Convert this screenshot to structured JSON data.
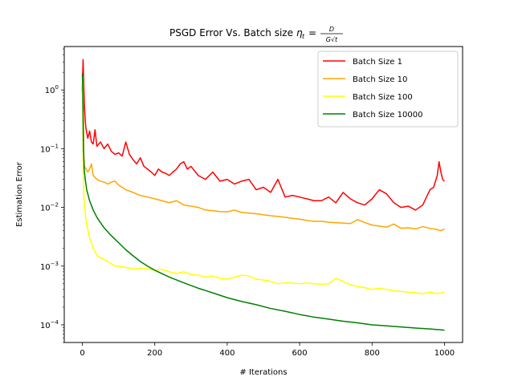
{
  "chart_data": {
    "type": "line",
    "title": "PSGD Error Vs. Batch size",
    "title_math": "η_t = D / (G√t)",
    "xlabel": "# Iterations",
    "ylabel": "Estimation Error",
    "xlim": [
      -50,
      1050
    ],
    "ylim": [
      5e-05,
      5.5
    ],
    "yscale": "log",
    "x_ticks": [
      0,
      200,
      400,
      600,
      800,
      1000
    ],
    "y_ticks": [
      0.0001,
      0.001,
      0.01,
      0.1,
      1
    ],
    "y_tick_labels": [
      "10^-4",
      "10^-3",
      "10^-2",
      "10^-1",
      "10^0"
    ],
    "grid": false,
    "legend_position": "top-right",
    "series": [
      {
        "name": "Batch Size 1",
        "color": "#ff0000",
        "points": [
          [
            0,
            1.0
          ],
          [
            1,
            2.0
          ],
          [
            2,
            3.3
          ],
          [
            4,
            1.2
          ],
          [
            6,
            0.5
          ],
          [
            8,
            0.3
          ],
          [
            10,
            0.22
          ],
          [
            15,
            0.15
          ],
          [
            20,
            0.2
          ],
          [
            25,
            0.13
          ],
          [
            30,
            0.12
          ],
          [
            35,
            0.21
          ],
          [
            40,
            0.11
          ],
          [
            50,
            0.13
          ],
          [
            60,
            0.1
          ],
          [
            70,
            0.12
          ],
          [
            80,
            0.09
          ],
          [
            90,
            0.08
          ],
          [
            100,
            0.085
          ],
          [
            110,
            0.075
          ],
          [
            120,
            0.13
          ],
          [
            130,
            0.08
          ],
          [
            140,
            0.065
          ],
          [
            150,
            0.055
          ],
          [
            160,
            0.07
          ],
          [
            170,
            0.05
          ],
          [
            180,
            0.045
          ],
          [
            190,
            0.04
          ],
          [
            200,
            0.035
          ],
          [
            210,
            0.045
          ],
          [
            220,
            0.04
          ],
          [
            230,
            0.038
          ],
          [
            240,
            0.035
          ],
          [
            250,
            0.04
          ],
          [
            260,
            0.045
          ],
          [
            270,
            0.055
          ],
          [
            280,
            0.06
          ],
          [
            290,
            0.045
          ],
          [
            300,
            0.05
          ],
          [
            320,
            0.035
          ],
          [
            340,
            0.03
          ],
          [
            360,
            0.04
          ],
          [
            380,
            0.028
          ],
          [
            400,
            0.03
          ],
          [
            420,
            0.025
          ],
          [
            440,
            0.028
          ],
          [
            460,
            0.03
          ],
          [
            480,
            0.02
          ],
          [
            500,
            0.022
          ],
          [
            520,
            0.018
          ],
          [
            540,
            0.03
          ],
          [
            560,
            0.015
          ],
          [
            580,
            0.016
          ],
          [
            600,
            0.015
          ],
          [
            620,
            0.014
          ],
          [
            640,
            0.013
          ],
          [
            660,
            0.013
          ],
          [
            680,
            0.015
          ],
          [
            700,
            0.012
          ],
          [
            720,
            0.018
          ],
          [
            740,
            0.014
          ],
          [
            760,
            0.012
          ],
          [
            780,
            0.011
          ],
          [
            800,
            0.014
          ],
          [
            820,
            0.02
          ],
          [
            840,
            0.017
          ],
          [
            860,
            0.012
          ],
          [
            880,
            0.01
          ],
          [
            900,
            0.0105
          ],
          [
            920,
            0.009
          ],
          [
            940,
            0.011
          ],
          [
            960,
            0.02
          ],
          [
            970,
            0.022
          ],
          [
            980,
            0.035
          ],
          [
            985,
            0.06
          ],
          [
            990,
            0.04
          ],
          [
            995,
            0.03
          ],
          [
            1000,
            0.028
          ]
        ]
      },
      {
        "name": "Batch Size 10",
        "color": "#ffa500",
        "points": [
          [
            0,
            0.9
          ],
          [
            1,
            1.7
          ],
          [
            2,
            1.2
          ],
          [
            3,
            0.3
          ],
          [
            4,
            0.08
          ],
          [
            6,
            0.05
          ],
          [
            10,
            0.045
          ],
          [
            15,
            0.04
          ],
          [
            20,
            0.045
          ],
          [
            25,
            0.055
          ],
          [
            30,
            0.035
          ],
          [
            40,
            0.03
          ],
          [
            50,
            0.028
          ],
          [
            60,
            0.027
          ],
          [
            70,
            0.025
          ],
          [
            80,
            0.027
          ],
          [
            90,
            0.028
          ],
          [
            100,
            0.024
          ],
          [
            110,
            0.022
          ],
          [
            120,
            0.02
          ],
          [
            140,
            0.018
          ],
          [
            160,
            0.016
          ],
          [
            180,
            0.015
          ],
          [
            200,
            0.014
          ],
          [
            220,
            0.013
          ],
          [
            240,
            0.012
          ],
          [
            260,
            0.013
          ],
          [
            280,
            0.011
          ],
          [
            300,
            0.0105
          ],
          [
            320,
            0.01
          ],
          [
            340,
            0.009
          ],
          [
            360,
            0.0088
          ],
          [
            380,
            0.0085
          ],
          [
            400,
            0.0084
          ],
          [
            420,
            0.009
          ],
          [
            440,
            0.0082
          ],
          [
            460,
            0.008
          ],
          [
            480,
            0.0078
          ],
          [
            500,
            0.0075
          ],
          [
            520,
            0.0072
          ],
          [
            540,
            0.007
          ],
          [
            560,
            0.0068
          ],
          [
            580,
            0.0065
          ],
          [
            600,
            0.0063
          ],
          [
            620,
            0.006
          ],
          [
            640,
            0.0058
          ],
          [
            660,
            0.0058
          ],
          [
            680,
            0.0056
          ],
          [
            700,
            0.0055
          ],
          [
            720,
            0.0054
          ],
          [
            740,
            0.0053
          ],
          [
            760,
            0.0062
          ],
          [
            780,
            0.0055
          ],
          [
            800,
            0.005
          ],
          [
            820,
            0.0048
          ],
          [
            840,
            0.0046
          ],
          [
            860,
            0.0052
          ],
          [
            880,
            0.0044
          ],
          [
            900,
            0.0045
          ],
          [
            920,
            0.0043
          ],
          [
            940,
            0.0047
          ],
          [
            960,
            0.0044
          ],
          [
            980,
            0.0042
          ],
          [
            990,
            0.004
          ],
          [
            1000,
            0.0043
          ]
        ]
      },
      {
        "name": "Batch Size 100",
        "color": "#ffff00",
        "points": [
          [
            0,
            1.6
          ],
          [
            1,
            1.0
          ],
          [
            2,
            0.1
          ],
          [
            3,
            0.03
          ],
          [
            5,
            0.012
          ],
          [
            8,
            0.008
          ],
          [
            12,
            0.005
          ],
          [
            16,
            0.004
          ],
          [
            20,
            0.003
          ],
          [
            25,
            0.0025
          ],
          [
            30,
            0.002
          ],
          [
            35,
            0.0018
          ],
          [
            40,
            0.0015
          ],
          [
            50,
            0.0014
          ],
          [
            60,
            0.0013
          ],
          [
            70,
            0.0012
          ],
          [
            80,
            0.0011
          ],
          [
            90,
            0.001
          ],
          [
            100,
            0.001
          ],
          [
            120,
            0.00095
          ],
          [
            140,
            0.0009
          ],
          [
            160,
            0.00092
          ],
          [
            180,
            0.0009
          ],
          [
            200,
            0.00085
          ],
          [
            220,
            0.00088
          ],
          [
            240,
            0.0008
          ],
          [
            260,
            0.00075
          ],
          [
            280,
            0.0008
          ],
          [
            300,
            0.00072
          ],
          [
            320,
            0.0007
          ],
          [
            340,
            0.00065
          ],
          [
            360,
            0.00068
          ],
          [
            380,
            0.00062
          ],
          [
            400,
            0.0006
          ],
          [
            420,
            0.00065
          ],
          [
            440,
            0.0007
          ],
          [
            460,
            0.00068
          ],
          [
            480,
            0.0006
          ],
          [
            500,
            0.00058
          ],
          [
            520,
            0.00055
          ],
          [
            540,
            0.0005
          ],
          [
            560,
            0.00052
          ],
          [
            580,
            0.00051
          ],
          [
            600,
            0.0005
          ],
          [
            620,
            0.00052
          ],
          [
            640,
            0.0005
          ],
          [
            660,
            0.00049
          ],
          [
            680,
            0.0005
          ],
          [
            700,
            0.00062
          ],
          [
            720,
            0.00055
          ],
          [
            740,
            0.00048
          ],
          [
            760,
            0.00045
          ],
          [
            780,
            0.00043
          ],
          [
            800,
            0.0004
          ],
          [
            820,
            0.00042
          ],
          [
            840,
            0.0004
          ],
          [
            860,
            0.00038
          ],
          [
            880,
            0.00037
          ],
          [
            900,
            0.00036
          ],
          [
            920,
            0.00035
          ],
          [
            940,
            0.00034
          ],
          [
            960,
            0.00036
          ],
          [
            980,
            0.00034
          ],
          [
            1000,
            0.00036
          ]
        ]
      },
      {
        "name": "Batch Size 10000",
        "color": "#008000",
        "points": [
          [
            0,
            1.9
          ],
          [
            1,
            1.0
          ],
          [
            2,
            0.3
          ],
          [
            3,
            0.1
          ],
          [
            5,
            0.045
          ],
          [
            8,
            0.03
          ],
          [
            12,
            0.02
          ],
          [
            20,
            0.013
          ],
          [
            30,
            0.009
          ],
          [
            40,
            0.0068
          ],
          [
            50,
            0.0055
          ],
          [
            60,
            0.0045
          ],
          [
            80,
            0.0033
          ],
          [
            100,
            0.0025
          ],
          [
            120,
            0.0019
          ],
          [
            140,
            0.0015
          ],
          [
            160,
            0.0012
          ],
          [
            180,
            0.001
          ],
          [
            200,
            0.00085
          ],
          [
            240,
            0.00065
          ],
          [
            280,
            0.00052
          ],
          [
            320,
            0.00042
          ],
          [
            360,
            0.00035
          ],
          [
            400,
            0.00029
          ],
          [
            440,
            0.00025
          ],
          [
            480,
            0.00022
          ],
          [
            520,
            0.00019
          ],
          [
            560,
            0.00017
          ],
          [
            600,
            0.00015
          ],
          [
            640,
            0.000135
          ],
          [
            680,
            0.000125
          ],
          [
            720,
            0.000115
          ],
          [
            760,
            0.000108
          ],
          [
            800,
            0.0001
          ],
          [
            840,
            9.6e-05
          ],
          [
            880,
            9.2e-05
          ],
          [
            920,
            8.8e-05
          ],
          [
            960,
            8.5e-05
          ],
          [
            1000,
            8.1e-05
          ]
        ]
      }
    ]
  }
}
